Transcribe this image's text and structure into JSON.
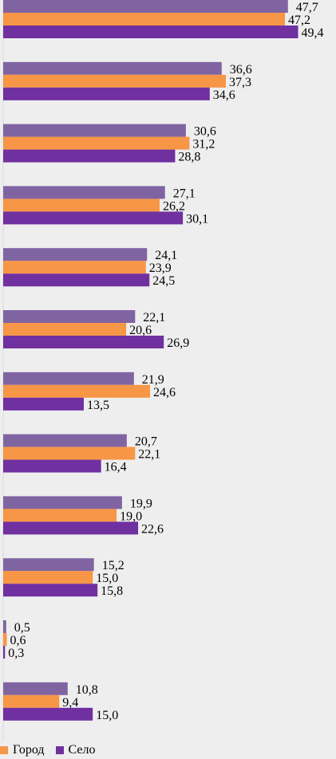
{
  "chart_data": {
    "type": "bar",
    "orientation": "horizontal",
    "xlim": [
      0,
      50
    ],
    "grid": false,
    "legend_position": "bottom-left",
    "series": [
      {
        "color": "#8064a2",
        "values": [
          47.7,
          36.6,
          30.6,
          27.1,
          24.1,
          22.1,
          21.9,
          20.7,
          19.9,
          15.2,
          0.5,
          10.8
        ],
        "labels": [
          "47,7",
          "36,6",
          "30,6",
          "27,1",
          "24,1",
          "22,1",
          "21,9",
          "20,7",
          "19,9",
          "15,2",
          "0,5",
          "10,8"
        ]
      },
      {
        "name": "Город",
        "color": "#f79646",
        "values": [
          47.2,
          37.3,
          31.2,
          26.2,
          23.9,
          20.6,
          24.6,
          22.1,
          19.0,
          15.0,
          0.6,
          9.4
        ],
        "labels": [
          "47,2",
          "37,3",
          "31,2",
          "26,2",
          "23,9",
          "20,6",
          "24,6",
          "22,1",
          "19,0",
          "15,0",
          "0,6",
          "9,4"
        ]
      },
      {
        "name": "Село",
        "color": "#7030a0",
        "values": [
          49.4,
          34.6,
          28.8,
          30.1,
          24.5,
          26.9,
          13.5,
          16.4,
          22.6,
          15.8,
          0.3,
          15.0
        ],
        "labels": [
          "49,4",
          "34,6",
          "28,8",
          "30,1",
          "24,5",
          "26,9",
          "13,5",
          "16,4",
          "22,6",
          "15,8",
          "0,3",
          "15,0"
        ]
      }
    ]
  }
}
